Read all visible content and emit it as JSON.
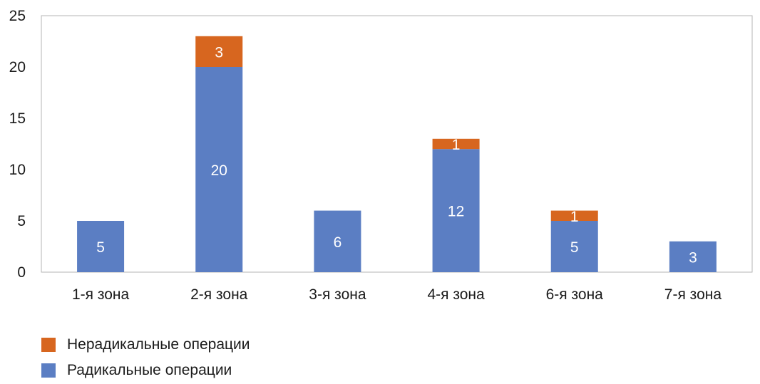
{
  "chart_data": {
    "type": "bar",
    "stacked": true,
    "categories": [
      "1-я зона",
      "2-я зона",
      "3-я зона",
      "4-я зона",
      "6-я зона",
      "7-я зона"
    ],
    "series": [
      {
        "name": "Радикальные операции",
        "values": [
          5,
          20,
          6,
          12,
          5,
          3
        ],
        "color": "#5b7ec3"
      },
      {
        "name": "Нерадикальные операции",
        "values": [
          0,
          3,
          0,
          1,
          1,
          0
        ],
        "color": "#d7661f"
      }
    ],
    "ylim": [
      0,
      25
    ],
    "yticks": [
      0,
      5,
      10,
      15,
      20,
      25
    ],
    "grid": false,
    "legend_position": "bottom-left"
  },
  "legend": [
    {
      "label": "Нерадикальные операции",
      "color": "#d7661f"
    },
    {
      "label": "Радикальные операции",
      "color": "#5b7ec3"
    }
  ]
}
